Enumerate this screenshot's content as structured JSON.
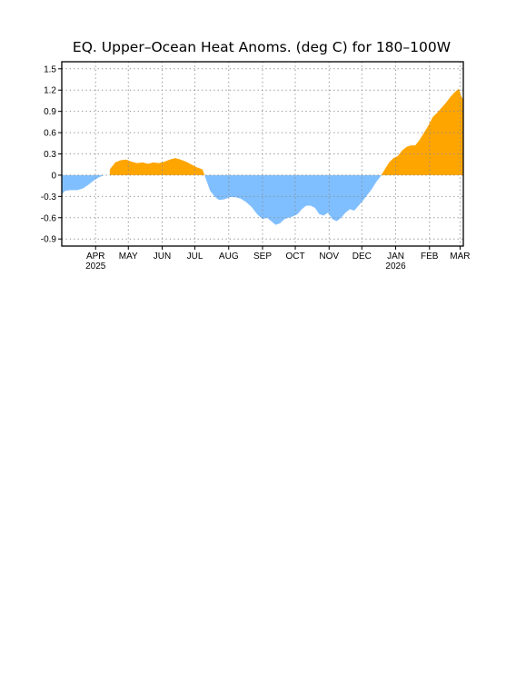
{
  "chart_data": {
    "type": "area",
    "title": "EQ. Upper–Ocean Heat Anoms. (deg C) for 180–100W",
    "xlabel": "",
    "ylabel": "",
    "ylim": [
      -1.0,
      1.6
    ],
    "xlim": [
      "2025-03-01",
      "2026-03-04"
    ],
    "grid": true,
    "y_ticks": [
      1.5,
      1.2,
      0.9,
      0.6,
      0.3,
      0,
      -0.3,
      -0.6,
      -0.9
    ],
    "y_tick_labels": [
      "1.5",
      "1.2",
      "0.9",
      "0.6",
      "0.3",
      "0",
      "-0.3",
      "-0.6",
      "-0.9"
    ],
    "x_ticks": [
      {
        "date": "2025-04-01",
        "label": "APR",
        "year": "2025"
      },
      {
        "date": "2025-05-01",
        "label": "MAY",
        "year": ""
      },
      {
        "date": "2025-06-01",
        "label": "JUN",
        "year": ""
      },
      {
        "date": "2025-07-01",
        "label": "JUL",
        "year": ""
      },
      {
        "date": "2025-08-01",
        "label": "AUG",
        "year": ""
      },
      {
        "date": "2025-09-01",
        "label": "SEP",
        "year": ""
      },
      {
        "date": "2025-10-01",
        "label": "OCT",
        "year": ""
      },
      {
        "date": "2025-11-01",
        "label": "NOV",
        "year": ""
      },
      {
        "date": "2025-12-01",
        "label": "DEC",
        "year": ""
      },
      {
        "date": "2026-01-01",
        "label": "JAN",
        "year": "2026"
      },
      {
        "date": "2026-02-01",
        "label": "FEB",
        "year": ""
      },
      {
        "date": "2026-03-01",
        "label": "MAR",
        "year": ""
      }
    ],
    "colors": {
      "positive": "#ffa500",
      "negative": "#80bfff"
    },
    "series": [
      {
        "x": [
          "2025-03-01",
          "2025-03-04",
          "2025-03-09",
          "2025-03-15",
          "2025-03-20",
          "2025-03-25",
          "2025-03-30",
          "2025-04-04",
          "2025-04-09",
          "2025-04-14",
          "2025-04-19",
          "2025-04-24",
          "2025-04-29",
          "2025-05-04",
          "2025-05-09",
          "2025-05-14",
          "2025-05-19",
          "2025-05-24",
          "2025-05-29",
          "2025-06-03",
          "2025-06-08",
          "2025-06-13",
          "2025-06-18",
          "2025-06-23",
          "2025-06-28",
          "2025-07-03",
          "2025-07-08",
          "2025-07-11",
          "2025-07-15",
          "2025-07-19",
          "2025-07-23",
          "2025-07-28",
          "2025-08-02",
          "2025-08-07",
          "2025-08-12",
          "2025-08-17",
          "2025-08-22",
          "2025-08-27",
          "2025-09-01",
          "2025-09-05",
          "2025-09-09",
          "2025-09-13",
          "2025-09-17",
          "2025-09-21",
          "2025-09-25",
          "2025-09-29",
          "2025-10-03",
          "2025-10-07",
          "2025-10-11",
          "2025-10-15",
          "2025-10-19",
          "2025-10-23",
          "2025-10-27",
          "2025-10-31",
          "2025-11-04",
          "2025-11-08",
          "2025-11-12",
          "2025-11-16",
          "2025-11-20",
          "2025-11-24",
          "2025-11-28",
          "2025-12-02",
          "2025-12-06",
          "2025-12-10",
          "2025-12-14",
          "2025-12-18",
          "2025-12-22",
          "2025-12-26",
          "2025-12-30",
          "2026-01-03",
          "2026-01-07",
          "2026-01-11",
          "2026-01-15",
          "2026-01-19",
          "2026-01-23",
          "2026-01-27",
          "2026-01-31",
          "2026-02-04",
          "2026-02-08",
          "2026-02-12",
          "2026-02-16",
          "2026-02-20",
          "2026-02-24",
          "2026-02-28",
          "2026-03-02",
          "2026-03-04"
        ],
        "values": [
          -0.27,
          -0.22,
          -0.21,
          -0.21,
          -0.19,
          -0.14,
          -0.08,
          -0.03,
          0.0,
          0.08,
          0.18,
          0.21,
          0.22,
          0.19,
          0.17,
          0.18,
          0.16,
          0.18,
          0.17,
          0.19,
          0.22,
          0.24,
          0.22,
          0.19,
          0.15,
          0.11,
          0.08,
          -0.05,
          -0.22,
          -0.3,
          -0.35,
          -0.34,
          -0.31,
          -0.31,
          -0.33,
          -0.38,
          -0.45,
          -0.55,
          -0.62,
          -0.6,
          -0.65,
          -0.7,
          -0.68,
          -0.62,
          -0.6,
          -0.58,
          -0.55,
          -0.48,
          -0.43,
          -0.43,
          -0.46,
          -0.55,
          -0.57,
          -0.53,
          -0.62,
          -0.65,
          -0.6,
          -0.53,
          -0.48,
          -0.5,
          -0.43,
          -0.36,
          -0.28,
          -0.2,
          -0.1,
          -0.02,
          0.08,
          0.18,
          0.24,
          0.27,
          0.35,
          0.4,
          0.42,
          0.42,
          0.5,
          0.6,
          0.7,
          0.82,
          0.88,
          0.95,
          1.02,
          1.1,
          1.17,
          1.22,
          1.12,
          1.06
        ]
      }
    ]
  }
}
